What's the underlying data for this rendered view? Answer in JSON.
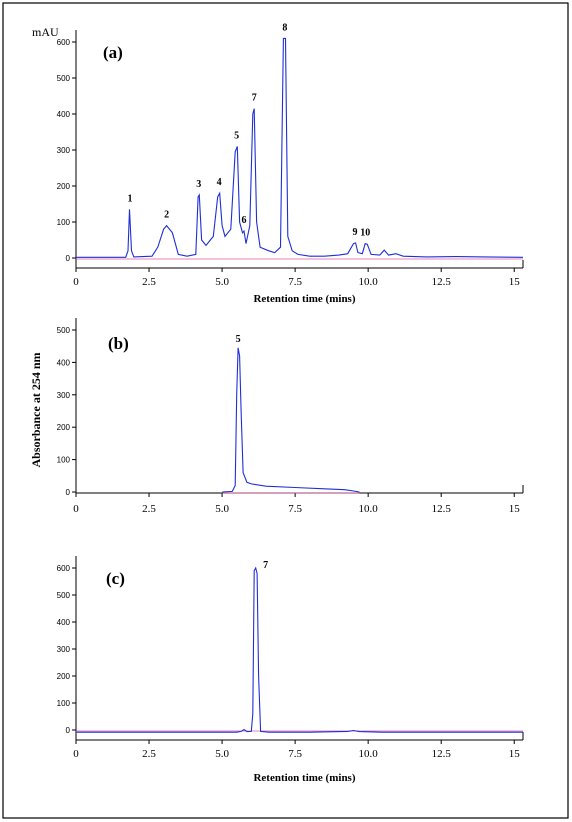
{
  "figure": {
    "shared_ylabel": "Absorbance at 254 nm"
  },
  "chart_data": [
    {
      "type": "line",
      "panel_label": "(a)",
      "unit_label": "mAU",
      "xlabel": "Retention time (mins)",
      "x_ticks": [
        "0",
        "2.5",
        "5.0",
        "7.5",
        "10.0",
        "12.5",
        "15"
      ],
      "x_tick_values": [
        0,
        2.5,
        5.0,
        7.5,
        10.0,
        12.5,
        15
      ],
      "y_ticks": [
        "0",
        "100",
        "200",
        "300",
        "400",
        "500",
        "600"
      ],
      "y_tick_values": [
        0,
        100,
        200,
        300,
        400,
        500,
        600
      ],
      "xlim": [
        0,
        15.3
      ],
      "ylim": [
        -20,
        640
      ],
      "peaks": [
        {
          "label": "1",
          "x": 1.85,
          "y": 135
        },
        {
          "label": "2",
          "x": 3.1,
          "y": 90
        },
        {
          "label": "3",
          "x": 4.2,
          "y": 175
        },
        {
          "label": "4",
          "x": 4.9,
          "y": 180
        },
        {
          "label": "5",
          "x": 5.5,
          "y": 310
        },
        {
          "label": "6",
          "x": 5.75,
          "y": 75
        },
        {
          "label": "7",
          "x": 6.1,
          "y": 415
        },
        {
          "label": "8",
          "x": 7.15,
          "y": 610
        },
        {
          "label": "9",
          "x": 9.55,
          "y": 42
        },
        {
          "label": "10",
          "x": 9.9,
          "y": 40
        }
      ],
      "series": [
        {
          "points": [
            [
              0,
              2
            ],
            [
              1.7,
              2
            ],
            [
              1.78,
              20
            ],
            [
              1.83,
              135
            ],
            [
              1.9,
              20
            ],
            [
              1.98,
              3
            ],
            [
              2.6,
              5
            ],
            [
              2.8,
              30
            ],
            [
              3.0,
              80
            ],
            [
              3.1,
              90
            ],
            [
              3.3,
              70
            ],
            [
              3.5,
              10
            ],
            [
              3.8,
              5
            ],
            [
              4.1,
              10
            ],
            [
              4.18,
              170
            ],
            [
              4.22,
              175
            ],
            [
              4.3,
              50
            ],
            [
              4.45,
              35
            ],
            [
              4.7,
              60
            ],
            [
              4.85,
              170
            ],
            [
              4.92,
              180
            ],
            [
              5.0,
              90
            ],
            [
              5.1,
              60
            ],
            [
              5.3,
              80
            ],
            [
              5.45,
              295
            ],
            [
              5.52,
              310
            ],
            [
              5.6,
              100
            ],
            [
              5.7,
              70
            ],
            [
              5.75,
              75
            ],
            [
              5.82,
              40
            ],
            [
              5.95,
              90
            ],
            [
              6.05,
              400
            ],
            [
              6.1,
              415
            ],
            [
              6.18,
              100
            ],
            [
              6.3,
              30
            ],
            [
              6.6,
              20
            ],
            [
              6.8,
              15
            ],
            [
              7.0,
              30
            ],
            [
              7.1,
              610
            ],
            [
              7.17,
              610
            ],
            [
              7.25,
              60
            ],
            [
              7.4,
              20
            ],
            [
              7.6,
              10
            ],
            [
              8.0,
              5
            ],
            [
              8.5,
              5
            ],
            [
              9.0,
              8
            ],
            [
              9.3,
              12
            ],
            [
              9.5,
              40
            ],
            [
              9.57,
              42
            ],
            [
              9.65,
              15
            ],
            [
              9.8,
              12
            ],
            [
              9.9,
              40
            ],
            [
              9.97,
              38
            ],
            [
              10.1,
              10
            ],
            [
              10.4,
              8
            ],
            [
              10.55,
              22
            ],
            [
              10.7,
              8
            ],
            [
              10.95,
              12
            ],
            [
              11.2,
              5
            ],
            [
              12,
              3
            ],
            [
              13,
              4
            ],
            [
              14,
              3
            ],
            [
              15.3,
              2
            ]
          ]
        }
      ],
      "baseline_color": "#e05aa0",
      "trace_color": "#1f2fd6"
    },
    {
      "type": "line",
      "panel_label": "(b)",
      "xlabel": "",
      "x_ticks": [
        "0",
        "2.5",
        "5.0",
        "7.5",
        "10.0",
        "12.5",
        "15"
      ],
      "x_tick_values": [
        0,
        2.5,
        5.0,
        7.5,
        10.0,
        12.5,
        15
      ],
      "y_ticks": [
        "0",
        "100",
        "200",
        "300",
        "400",
        "500"
      ],
      "y_tick_values": [
        0,
        100,
        200,
        300,
        400,
        500
      ],
      "xlim": [
        0,
        15.3
      ],
      "ylim": [
        -5,
        580
      ],
      "peaks": [
        {
          "label": "5",
          "x": 5.55,
          "y": 445
        }
      ],
      "series": [
        {
          "points": [
            [
              5.0,
              0
            ],
            [
              5.35,
              2
            ],
            [
              5.45,
              20
            ],
            [
              5.5,
              300
            ],
            [
              5.55,
              445
            ],
            [
              5.6,
              420
            ],
            [
              5.65,
              250
            ],
            [
              5.72,
              60
            ],
            [
              5.85,
              30
            ],
            [
              6.0,
              25
            ],
            [
              6.5,
              18
            ],
            [
              7.5,
              14
            ],
            [
              8.5,
              10
            ],
            [
              9.2,
              7
            ],
            [
              9.5,
              3
            ],
            [
              9.7,
              0
            ]
          ]
        }
      ],
      "baseline_color": "#e05aa0",
      "trace_color": "#1f2fd6"
    },
    {
      "type": "line",
      "panel_label": "(c)",
      "xlabel": "Retention time (mins)",
      "x_ticks": [
        "0",
        "2.5",
        "5.0",
        "7.5",
        "10.0",
        "12.5",
        "15"
      ],
      "x_tick_values": [
        0,
        2.5,
        5.0,
        7.5,
        10.0,
        12.5,
        15
      ],
      "y_ticks": [
        "0",
        "100",
        "200",
        "300",
        "400",
        "500",
        "600"
      ],
      "y_tick_values": [
        0,
        100,
        200,
        300,
        400,
        500,
        600
      ],
      "xlim": [
        0,
        15.3
      ],
      "ylim": [
        -30,
        620
      ],
      "peaks": [
        {
          "label": "7",
          "x": 6.2,
          "y": 600
        }
      ],
      "series": [
        {
          "points": [
            [
              0,
              -8
            ],
            [
              5.5,
              -8
            ],
            [
              5.65,
              -5
            ],
            [
              5.75,
              2
            ],
            [
              5.85,
              -6
            ],
            [
              6.0,
              -5
            ],
            [
              6.05,
              60
            ],
            [
              6.1,
              590
            ],
            [
              6.15,
              600
            ],
            [
              6.2,
              580
            ],
            [
              6.25,
              200
            ],
            [
              6.32,
              -5
            ],
            [
              6.6,
              -8
            ],
            [
              8,
              -8
            ],
            [
              9.3,
              -5
            ],
            [
              9.5,
              -2
            ],
            [
              9.7,
              -6
            ],
            [
              10.5,
              -8
            ],
            [
              15.3,
              -8
            ]
          ]
        }
      ],
      "baseline_color": "#e05aa0",
      "trace_color": "#1f2fd6"
    }
  ]
}
